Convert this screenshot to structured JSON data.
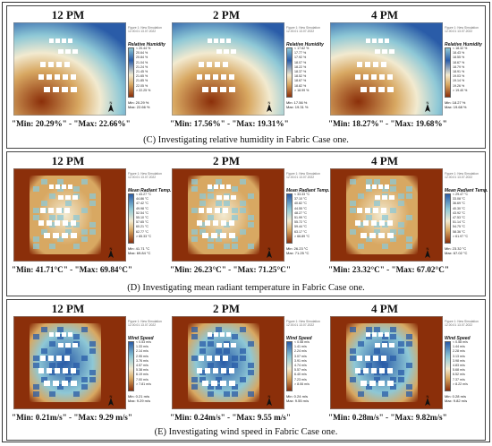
{
  "sections": [
    {
      "caption": "(C) Investigating relative humidity in Fabric Case one.",
      "variable": "humidity",
      "panels": [
        {
          "time": "12 PM",
          "range": "\"Min: 20.29%\" - \"Max: 22.66%\"",
          "legend_title": "Relative Humidity",
          "legend_ticks": [
            "< 20.44 %",
            "20.64 %",
            "20.84 %",
            "21.04 %",
            "21.24 %",
            "21.45 %",
            "21.65 %",
            "21.85 %",
            "22.05 %",
            "> 22.25 %"
          ],
          "legend_min": "Min: 20.29 %",
          "legend_max": "Max: 22.66 %"
        },
        {
          "time": "2 PM",
          "range": "\"Min: 17.56%\" - \"Max: 19.31%\"",
          "legend_title": "Relative Humidity",
          "legend_ticks": [
            "< 17.62 %",
            "17.77 %",
            "17.92 %",
            "18.07 %",
            "18.22 %",
            "18.37 %",
            "18.52 %",
            "18.67 %",
            "18.82 %",
            "> 18.99 %"
          ],
          "legend_min": "Min: 17.56 %",
          "legend_max": "Max: 19.31 %"
        },
        {
          "time": "4 PM",
          "range": "\"Min: 18.27%\" - \"Max: 19.68%\"",
          "legend_title": "Relative Humidity",
          "legend_ticks": [
            "< 18.32 %",
            "18.43 %",
            "18.55 %",
            "18.67 %",
            "18.79 %",
            "18.91 %",
            "19.03 %",
            "19.14 %",
            "19.26 %",
            "> 19.40 %"
          ],
          "legend_min": "Min: 18.27 %",
          "legend_max": "Max: 19.68 %"
        }
      ]
    },
    {
      "caption": "(D) Investigating mean radiant temperature in Fabric Case one.",
      "variable": "radiant",
      "panels": [
        {
          "time": "12 PM",
          "range": "\"Min: 41.71°C\" - \"Max: 69.84°C\"",
          "legend_title": "Mean Radiant Temp.",
          "legend_ticks": [
            "< 43.27 °C",
            "44.86 °C",
            "47.42 °C",
            "49.98 °C",
            "52.54 °C",
            "55.10 °C",
            "57.65 °C",
            "60.21 °C",
            "62.77 °C",
            "> 65.33 °C"
          ],
          "legend_min": "Min: 41.71 °C",
          "legend_max": "Max: 69.84 °C"
        },
        {
          "time": "2 PM",
          "range": "\"Min: 26.23°C\" - \"Max: 71.25°C\"",
          "legend_title": "Mean Radiant Temp.",
          "legend_ticks": [
            "< 33.33 °C",
            "37.10 °C",
            "40.82 °C",
            "44.55 °C",
            "48.27 °C",
            "51.99 °C",
            "55.72 °C",
            "59.44 °C",
            "63.17 °C",
            "> 66.89 °C"
          ],
          "legend_min": "Min: 26.23 °C",
          "legend_max": "Max: 71.25 °C"
        },
        {
          "time": "4 PM",
          "range": "\"Min: 23.32°C\" - \"Max: 67.02°C\"",
          "legend_title": "Mean Radiant Temp.",
          "legend_ticks": [
            "< 29.47 °C",
            "33.08 °C",
            "36.69 °C",
            "40.30 °C",
            "43.92 °C",
            "47.53 °C",
            "51.14 °C",
            "54.75 °C",
            "58.36 °C",
            "> 61.97 °C"
          ],
          "legend_min": "Min: 23.32 °C",
          "legend_max": "Max: 67.02 °C"
        }
      ]
    },
    {
      "caption": "(E) Investigating wind speed in Fabric Case one.",
      "variable": "wind",
      "panels": [
        {
          "time": "12 PM",
          "range": "\"Min: 0.21m/s\" - \"Max: 9.29 m/s\"",
          "legend_title": "Wind Speed",
          "legend_ticks": [
            "< 0.53 m/s",
            "1.33 m/s",
            "2.14 m/s",
            "2.95 m/s",
            "3.76 m/s",
            "4.57 m/s",
            "5.38 m/s",
            "6.19 m/s",
            "7.00 m/s",
            "> 7.81 m/s"
          ],
          "legend_min": "Min: 0.21 m/s",
          "legend_max": "Max: 9.29 m/s"
        },
        {
          "time": "2 PM",
          "range": "\"Min: 0.24m/s\" - \"Max: 9.55 m/s\"",
          "legend_title": "Wind Speed",
          "legend_ticks": [
            "< 0.58 m/s",
            "1.41 m/s",
            "2.24 m/s",
            "3.07 m/s",
            "3.91 m/s",
            "4.74 m/s",
            "5.57 m/s",
            "6.40 m/s",
            "7.23 m/s",
            "> 8.06 m/s"
          ],
          "legend_min": "Min: 0.24 m/s",
          "legend_max": "Max: 9.55 m/s"
        },
        {
          "time": "4 PM",
          "range": "\"Min: 0.28m/s\" - \"Max: 9.82m/s\"",
          "legend_title": "Wind Speed",
          "legend_ticks": [
            "< 0.58 m/s",
            "1.44 m/s",
            "2.28 m/s",
            "3.13 m/s",
            "3.98 m/s",
            "4.83 m/s",
            "5.68 m/s",
            "6.52 m/s",
            "7.37 m/s",
            "> 8.22 m/s"
          ],
          "legend_min": "Min: 0.28 m/s",
          "legend_max": "Max: 9.82 m/s"
        }
      ]
    }
  ],
  "legend_header": [
    "Figure 1: New Simulation",
    "12.00.01 13.07.2022"
  ],
  "colors": {
    "low": "#8b2f0a",
    "mid_low": "#d8a862",
    "mid": "#f2ead0",
    "mid_high": "#8ec8d6",
    "high": "#2a5ca8",
    "building": "#ffffff"
  }
}
